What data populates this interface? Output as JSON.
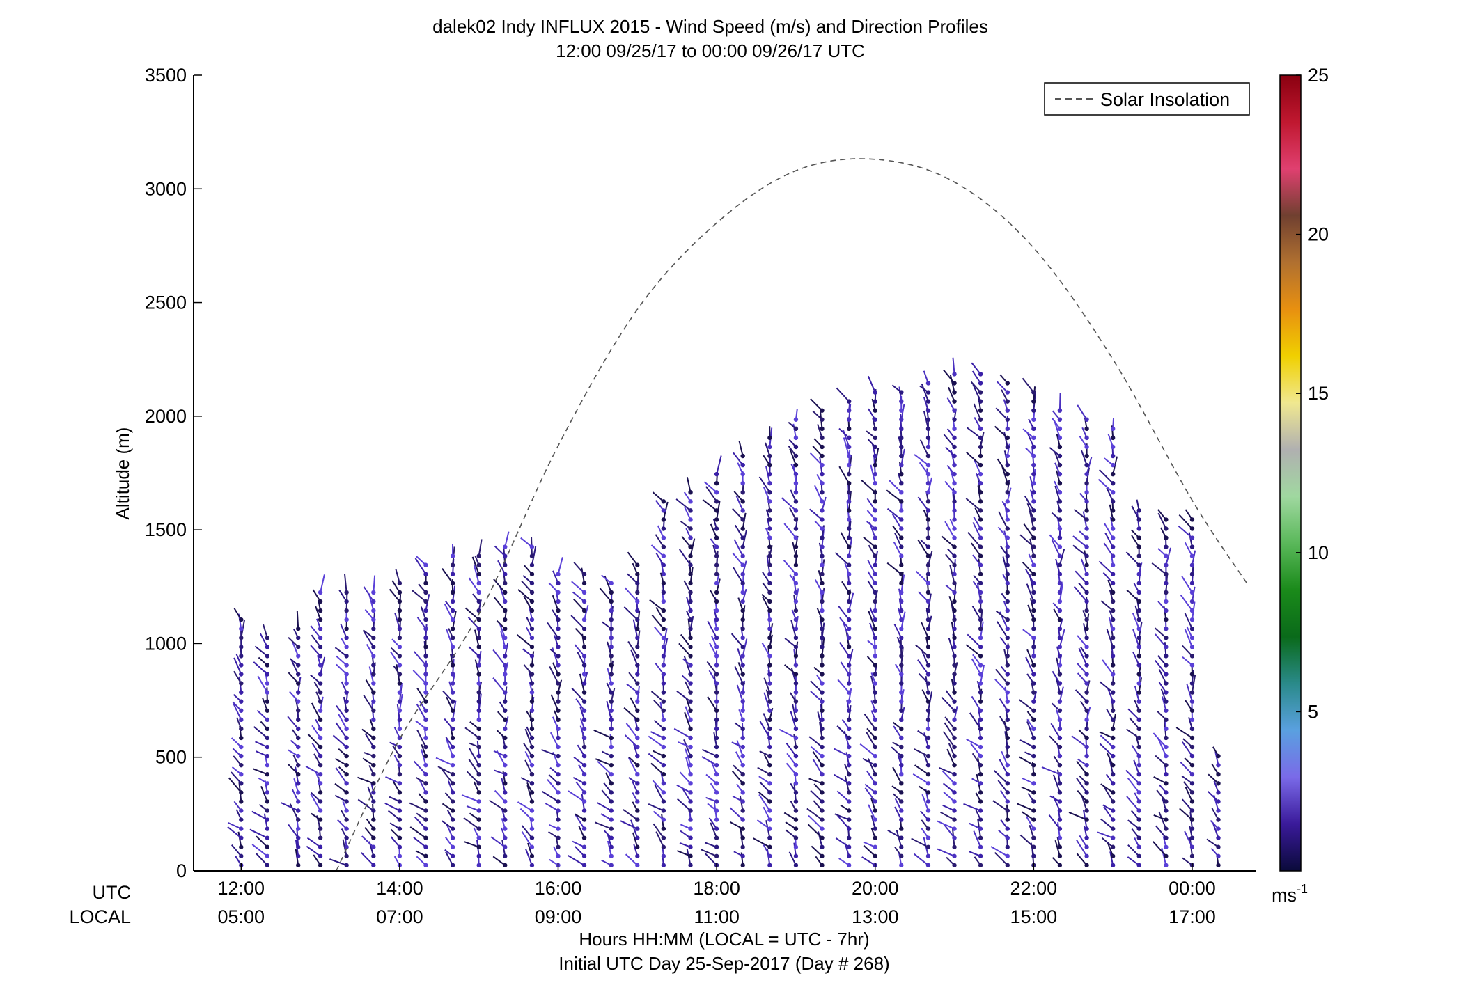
{
  "chart_data": {
    "type": "scatter",
    "title": "dalek02 Indy INFLUX 2015 - Wind Speed (m/s) and Direction Profiles",
    "subtitle": "12:00 09/25/17 to 00:00 09/26/17  UTC",
    "ylabel": "Altitude (m)",
    "xlabel_lines": [
      "Hours HH:MM  (LOCAL = UTC - 7hr)",
      "Initial UTC Day 25-Sep-2017 (Day # 268)"
    ],
    "x_row_labels": {
      "utc": "UTC",
      "local": "LOCAL"
    },
    "xlim_hours": [
      11.4,
      24.8
    ],
    "ylim": [
      0,
      3500
    ],
    "x_ticks": [
      {
        "hour": 12,
        "utc": "12:00",
        "local": "05:00"
      },
      {
        "hour": 14,
        "utc": "14:00",
        "local": "07:00"
      },
      {
        "hour": 16,
        "utc": "16:00",
        "local": "09:00"
      },
      {
        "hour": 18,
        "utc": "18:00",
        "local": "11:00"
      },
      {
        "hour": 20,
        "utc": "20:00",
        "local": "13:00"
      },
      {
        "hour": 22,
        "utc": "22:00",
        "local": "15:00"
      },
      {
        "hour": 24,
        "utc": "00:00",
        "local": "17:00"
      }
    ],
    "y_ticks": [
      "0",
      "500",
      "1000",
      "1500",
      "2000",
      "2500",
      "3000",
      "3500"
    ],
    "legend": {
      "entries": [
        "Solar Insolation"
      ],
      "placement": "top-right"
    },
    "colorbar": {
      "min": 0,
      "max": 25,
      "ticks": [
        "5",
        "10",
        "15",
        "20",
        "25"
      ],
      "unit": "ms",
      "unit_exponent": "-1",
      "colors": [
        "#0a0a3a",
        "#3a1a9a",
        "#7a6ae8",
        "#5aa0e0",
        "#2a8a8a",
        "#0a6a1a",
        "#1a8a1a",
        "#5ab85a",
        "#a0d8a0",
        "#b0b0b0",
        "#f0e890",
        "#f0d000",
        "#e89010",
        "#b07030",
        "#704030",
        "#e04070",
        "#c01830",
        "#8a0010"
      ]
    },
    "solar_insolation_curve": {
      "series_name": "Solar Insolation",
      "hours": [
        13.2,
        14,
        15,
        16,
        17,
        18,
        19,
        20,
        21,
        22,
        23,
        24,
        24.7
      ],
      "altitude_m": [
        0,
        580,
        1130,
        1870,
        2470,
        2850,
        3080,
        3130,
        3030,
        2740,
        2250,
        1630,
        1260
      ]
    },
    "profile_columns": [
      {
        "hour": 12.0,
        "top_m": 1130
      },
      {
        "hour": 12.33,
        "top_m": 1060
      },
      {
        "hour": 12.72,
        "top_m": 1090
      },
      {
        "hour": 13.0,
        "top_m": 1250
      },
      {
        "hour": 13.33,
        "top_m": 1260
      },
      {
        "hour": 13.67,
        "top_m": 1260
      },
      {
        "hour": 14.0,
        "top_m": 1270
      },
      {
        "hour": 14.33,
        "top_m": 1370
      },
      {
        "hour": 14.67,
        "top_m": 1390
      },
      {
        "hour": 15.0,
        "top_m": 1410
      },
      {
        "hour": 15.33,
        "top_m": 1440
      },
      {
        "hour": 15.67,
        "top_m": 1440
      },
      {
        "hour": 16.0,
        "top_m": 1320
      },
      {
        "hour": 16.33,
        "top_m": 1320
      },
      {
        "hour": 16.67,
        "top_m": 1300
      },
      {
        "hour": 17.0,
        "top_m": 1360
      },
      {
        "hour": 17.33,
        "top_m": 1650
      },
      {
        "hour": 17.67,
        "top_m": 1670
      },
      {
        "hour": 18.0,
        "top_m": 1760
      },
      {
        "hour": 18.33,
        "top_m": 1830
      },
      {
        "hour": 18.67,
        "top_m": 1920
      },
      {
        "hour": 19.0,
        "top_m": 2000
      },
      {
        "hour": 19.33,
        "top_m": 2050
      },
      {
        "hour": 19.67,
        "top_m": 2080
      },
      {
        "hour": 20.0,
        "top_m": 2130
      },
      {
        "hour": 20.33,
        "top_m": 2130
      },
      {
        "hour": 20.67,
        "top_m": 2150
      },
      {
        "hour": 21.0,
        "top_m": 2190
      },
      {
        "hour": 21.33,
        "top_m": 2200
      },
      {
        "hour": 21.67,
        "top_m": 2170
      },
      {
        "hour": 22.0,
        "top_m": 2120
      },
      {
        "hour": 22.33,
        "top_m": 2040
      },
      {
        "hour": 22.67,
        "top_m": 2000
      },
      {
        "hour": 23.0,
        "top_m": 1950
      },
      {
        "hour": 23.33,
        "top_m": 1590
      },
      {
        "hour": 23.67,
        "top_m": 1570
      },
      {
        "hour": 24.0,
        "top_m": 1570
      },
      {
        "hour": 24.33,
        "top_m": 520
      }
    ]
  }
}
